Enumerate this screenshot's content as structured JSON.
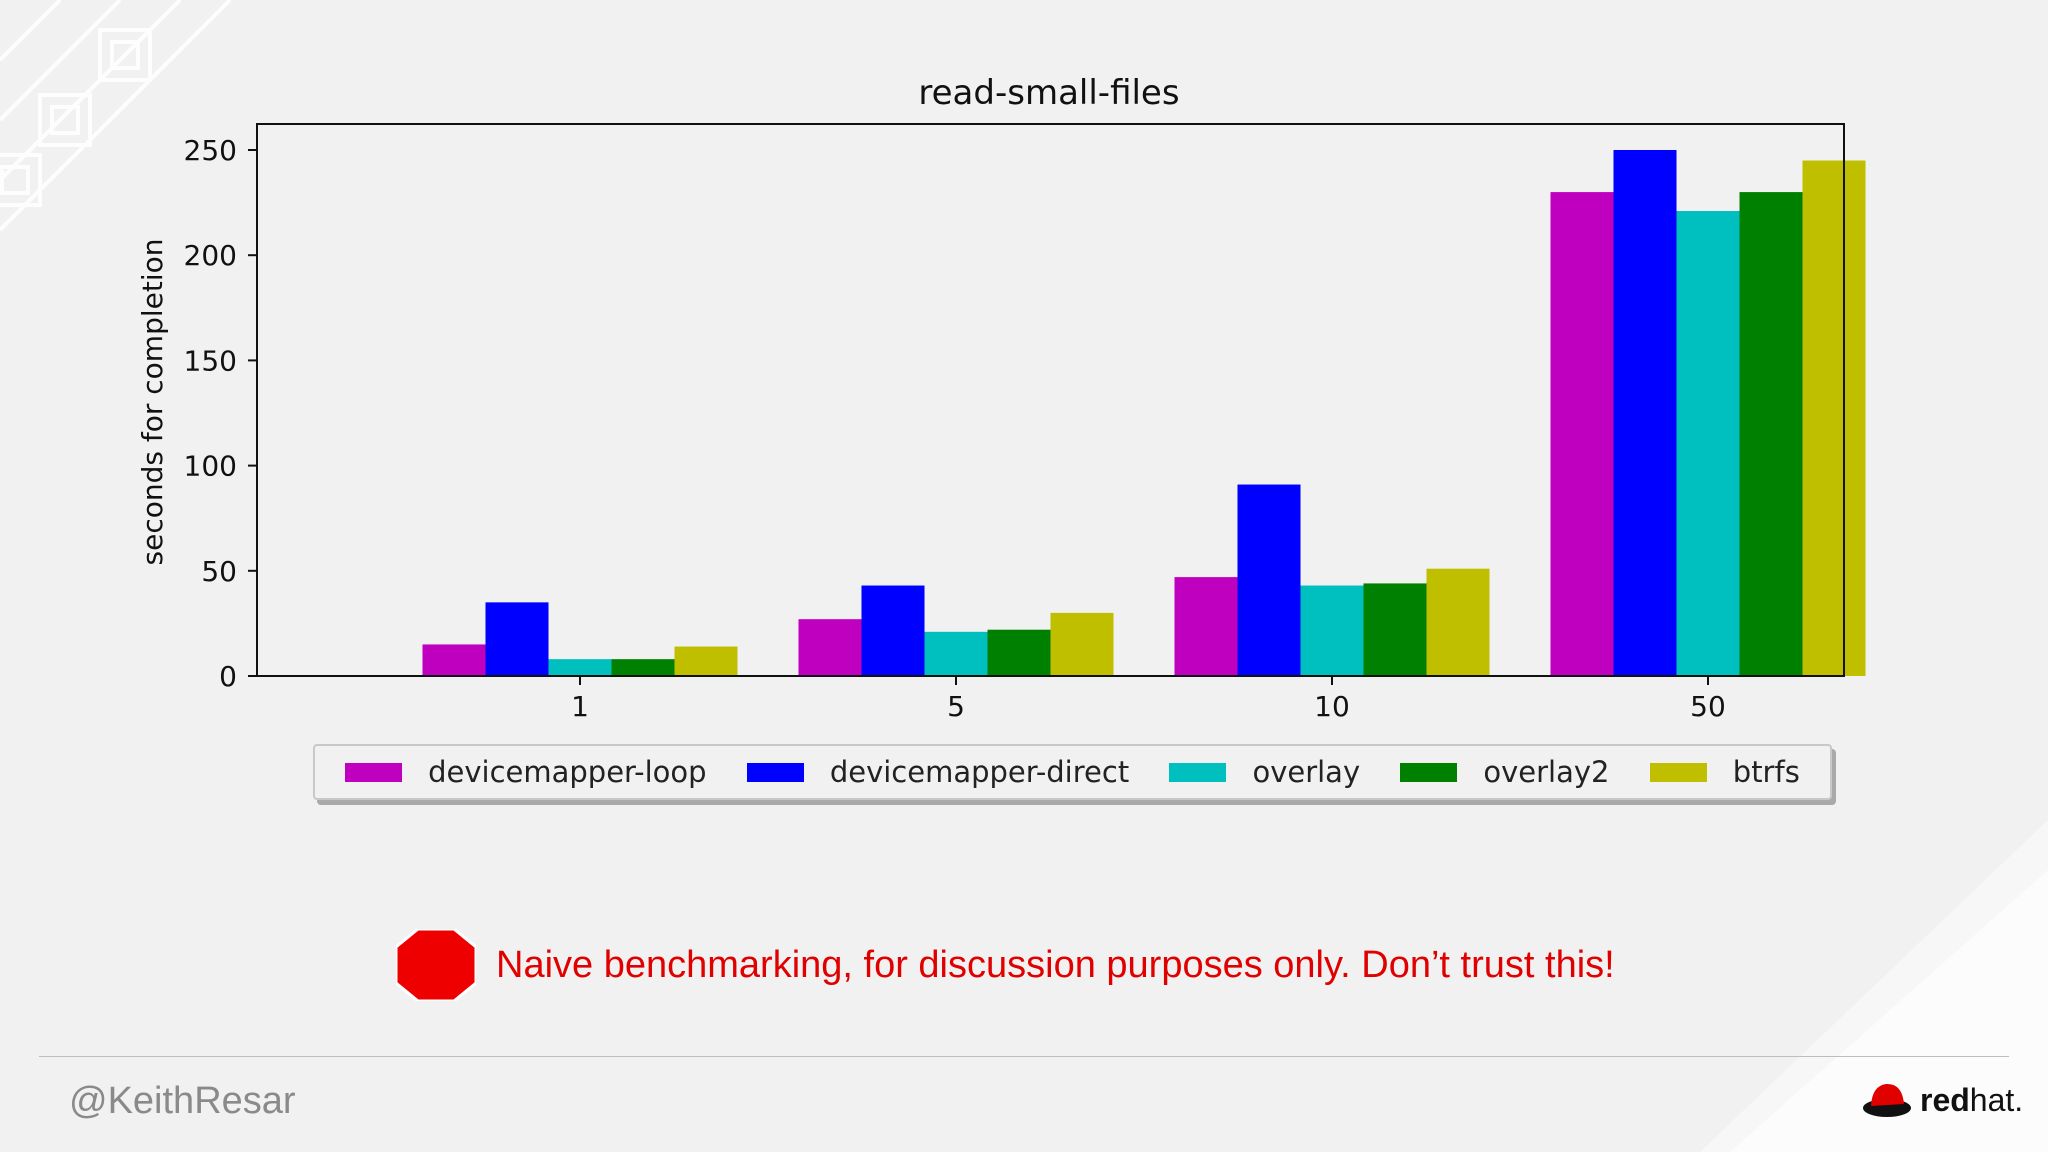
{
  "chart_data": {
    "type": "bar",
    "title": "read-small-files",
    "xlabel": "",
    "ylabel": "seconds for completion",
    "categories": [
      "1",
      "5",
      "10",
      "50"
    ],
    "ylim": [
      0,
      250
    ],
    "yticks": [
      0,
      50,
      100,
      150,
      200,
      250
    ],
    "series": [
      {
        "name": "devicemapper-loop",
        "color": "#bf00bf",
        "values": [
          15,
          27,
          47,
          230
        ]
      },
      {
        "name": "devicemapper-direct",
        "color": "#0000ff",
        "values": [
          35,
          43,
          91,
          250
        ]
      },
      {
        "name": "overlay",
        "color": "#00bfbf",
        "values": [
          8,
          21,
          43,
          221
        ]
      },
      {
        "name": "overlay2",
        "color": "#008000",
        "values": [
          8,
          22,
          44,
          230
        ]
      },
      {
        "name": "btrfs",
        "color": "#bfbf00",
        "values": [
          14,
          30,
          51,
          245
        ]
      }
    ],
    "legend": "bottom-center",
    "grid": false
  },
  "warning": {
    "icon": "stop-sign-icon",
    "color": "#e00000",
    "text": "Naive benchmarking, for discussion purposes only.  Don’t trust this!"
  },
  "footer": {
    "handle": "@KeithResar",
    "logo_bold": "red",
    "logo_light": "hat."
  }
}
